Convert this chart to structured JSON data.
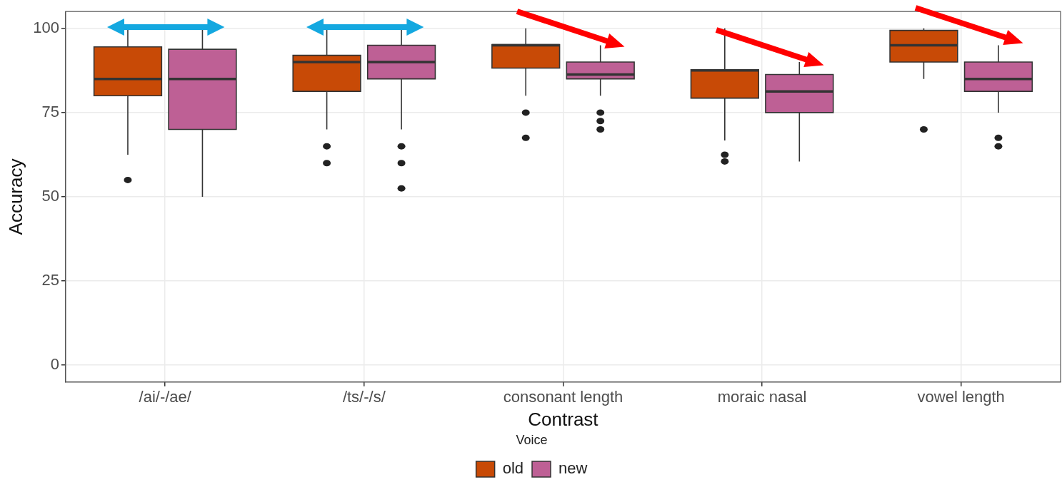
{
  "chart_data": {
    "type": "box",
    "xlabel": "Contrast",
    "ylabel": "Accuracy",
    "legend_title": "Voice",
    "legend": "bottom",
    "grid": true,
    "categories": [
      "/ai/-/ae/",
      "/ts/-/s/",
      "consonant length",
      "moraic nasal",
      "vowel length"
    ],
    "ylim": [
      -5,
      105
    ],
    "yticks": [
      0,
      25,
      50,
      75,
      100
    ],
    "series": [
      {
        "name": "old",
        "color": "#c84a06",
        "boxes": [
          {
            "low": 62.5,
            "q1": 80,
            "median": 85,
            "q3": 94.5,
            "high": 100,
            "outliers": [
              55
            ]
          },
          {
            "low": 70,
            "q1": 81.3,
            "median": 90,
            "q3": 92,
            "high": 100,
            "outliers": [
              65,
              60
            ]
          },
          {
            "low": 80,
            "q1": 88.2,
            "median": 95,
            "q3": 95.2,
            "high": 100,
            "outliers": [
              75,
              67.5
            ]
          },
          {
            "low": 66.7,
            "q1": 79.3,
            "median": 87.5,
            "q3": 87.7,
            "high": 100,
            "outliers": [
              62.5,
              60.5
            ]
          },
          {
            "low": 85,
            "q1": 90,
            "median": 95,
            "q3": 99.4,
            "high": 100,
            "outliers": [
              70
            ]
          }
        ]
      },
      {
        "name": "new",
        "color": "#be6095",
        "boxes": [
          {
            "low": 50,
            "q1": 70,
            "median": 85,
            "q3": 93.8,
            "high": 100
          },
          {
            "low": 70,
            "q1": 85,
            "median": 90,
            "q3": 95,
            "high": 100,
            "outliers": [
              65,
              60,
              52.5
            ]
          },
          {
            "low": 80,
            "q1": 85,
            "median": 86.3,
            "q3": 90,
            "high": 95,
            "outliers": [
              75,
              72.5,
              70
            ]
          },
          {
            "low": 60.5,
            "q1": 75,
            "median": 81.3,
            "q3": 86.3,
            "high": 90
          },
          {
            "low": 75,
            "q1": 81.3,
            "median": 85,
            "q3": 90,
            "high": 95,
            "outliers": [
              67.5,
              65
            ]
          }
        ]
      }
    ]
  }
}
